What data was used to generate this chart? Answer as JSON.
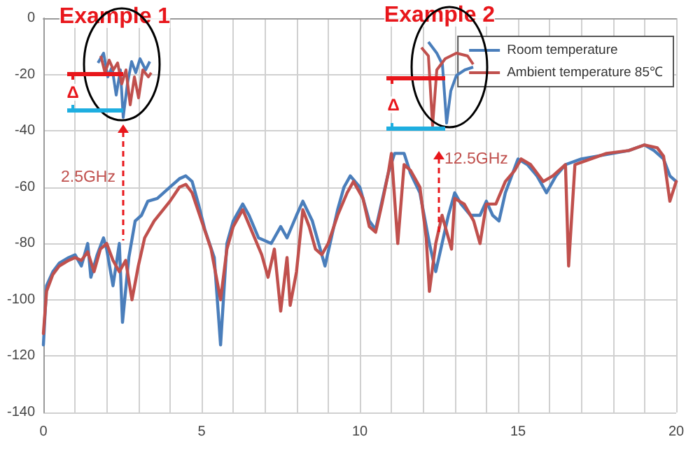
{
  "chart_data": {
    "type": "line",
    "xlim": [
      0,
      20
    ],
    "ylim": [
      -140,
      0
    ],
    "xticks": [
      0,
      {
        "value": 1,
        "label": null
      },
      {
        "value": 2,
        "label": null
      },
      {
        "value": 3,
        "label": null
      },
      {
        "value": 4,
        "label": null
      },
      5,
      {
        "value": 6,
        "label": null
      },
      {
        "value": 7,
        "label": null
      },
      {
        "value": 8,
        "label": null
      },
      {
        "value": 9,
        "label": null
      },
      10,
      {
        "value": 11,
        "label": null
      },
      {
        "value": 12,
        "label": null
      },
      {
        "value": 13,
        "label": null
      },
      {
        "value": 14,
        "label": null
      },
      15,
      {
        "value": 16,
        "label": null
      },
      {
        "value": 17,
        "label": null
      },
      {
        "value": 18,
        "label": null
      },
      {
        "value": 19,
        "label": null
      },
      20
    ],
    "yticks": [
      -140,
      -120,
      -100,
      -80,
      -60,
      -40,
      -20,
      0
    ],
    "grid": true,
    "legend": "top right",
    "marker": "none",
    "line_style": "solid",
    "annotations": [
      "Example 1",
      "Example 2",
      "Δ",
      "Δ",
      "2.5GHz",
      {
        "text": "12.5GHz",
        "x": 12.5,
        "y": -77
      }
    ],
    "series": [
      {
        "name": "Room temperature",
        "color": "#4a7ebb",
        "x": [
          0,
          0.1,
          0.3,
          0.5,
          0.8,
          1.0,
          1.2,
          1.4,
          1.5,
          1.7,
          1.9,
          2.0,
          2.2,
          2.4,
          2.5,
          2.7,
          2.9,
          3.1,
          3.3,
          3.6,
          4.0,
          4.3,
          4.5,
          4.7,
          4.9,
          5.1,
          5.4,
          5.6,
          5.8,
          6.0,
          6.3,
          6.5,
          6.8,
          7.2,
          7.5,
          7.7,
          8.0,
          8.2,
          8.5,
          8.7,
          8.9,
          9.1,
          9.3,
          9.5,
          9.7,
          10.0,
          10.3,
          10.5,
          10.7,
          10.9,
          11.1,
          11.4,
          11.6,
          11.9,
          12.2,
          12.4,
          12.6,
          12.8,
          13.0,
          13.2,
          13.5,
          13.8,
          14.0,
          14.2,
          14.4,
          14.6,
          14.8,
          15.0,
          15.3,
          15.6,
          15.9,
          16.2,
          16.5,
          17.0,
          17.5,
          18.0,
          18.5,
          19.0,
          19.3,
          19.6,
          19.8,
          20.0
        ],
        "values": [
          -116,
          -95,
          -90,
          -87,
          -85,
          -84,
          -88,
          -80,
          -92,
          -84,
          -78,
          -82,
          -95,
          -80,
          -108,
          -85,
          -72,
          -70,
          -65,
          -64,
          -60,
          -57,
          -56,
          -58,
          -66,
          -75,
          -85,
          -116,
          -80,
          -72,
          -66,
          -70,
          -78,
          -80,
          -74,
          -78,
          -70,
          -65,
          -72,
          -80,
          -88,
          -78,
          -68,
          -60,
          -56,
          -60,
          -72,
          -75,
          -65,
          -55,
          -48,
          -48,
          -55,
          -62,
          -80,
          -90,
          -80,
          -70,
          -62,
          -66,
          -70,
          -70,
          -65,
          -70,
          -72,
          -62,
          -56,
          -50,
          -52,
          -56,
          -62,
          -56,
          -52,
          -50,
          -49,
          -48,
          -47,
          -45,
          -47,
          -50,
          -56,
          -58
        ]
      },
      {
        "name": "Ambient temperature 85℃",
        "color": "#c0504d",
        "x": [
          0,
          0.1,
          0.3,
          0.5,
          0.8,
          1.0,
          1.2,
          1.4,
          1.6,
          1.8,
          2.0,
          2.2,
          2.4,
          2.6,
          2.8,
          3.0,
          3.2,
          3.5,
          4.0,
          4.3,
          4.5,
          4.7,
          5.0,
          5.3,
          5.6,
          5.8,
          6.0,
          6.3,
          6.6,
          6.9,
          7.1,
          7.3,
          7.5,
          7.7,
          7.8,
          8.0,
          8.2,
          8.4,
          8.6,
          8.8,
          9.0,
          9.3,
          9.6,
          9.8,
          10.1,
          10.3,
          10.5,
          10.7,
          10.9,
          11.0,
          11.2,
          11.4,
          11.6,
          11.9,
          12.1,
          12.2,
          12.4,
          12.6,
          12.9,
          13.0,
          13.3,
          13.6,
          13.8,
          14.0,
          14.3,
          14.6,
          14.9,
          15.1,
          15.4,
          15.8,
          16.1,
          16.5,
          16.6,
          16.8,
          17.3,
          17.8,
          18.5,
          19.0,
          19.4,
          19.6,
          19.8,
          20.0
        ],
        "values": [
          -112,
          -97,
          -91,
          -88,
          -86,
          -85,
          -86,
          -83,
          -90,
          -82,
          -80,
          -86,
          -90,
          -86,
          -100,
          -88,
          -78,
          -72,
          -65,
          -60,
          -59,
          -62,
          -72,
          -82,
          -100,
          -82,
          -74,
          -68,
          -76,
          -84,
          -92,
          -82,
          -104,
          -85,
          -102,
          -90,
          -68,
          -74,
          -82,
          -84,
          -80,
          -70,
          -62,
          -58,
          -64,
          -74,
          -76,
          -66,
          -55,
          -48,
          -80,
          -52,
          -54,
          -60,
          -78,
          -97,
          -80,
          -70,
          -82,
          -64,
          -66,
          -72,
          -80,
          -66,
          -66,
          -58,
          -54,
          -50,
          -52,
          -58,
          -56,
          -52,
          -88,
          -52,
          -50,
          -48,
          -47,
          -45,
          -46,
          -49,
          -65,
          -58
        ]
      }
    ]
  }
}
